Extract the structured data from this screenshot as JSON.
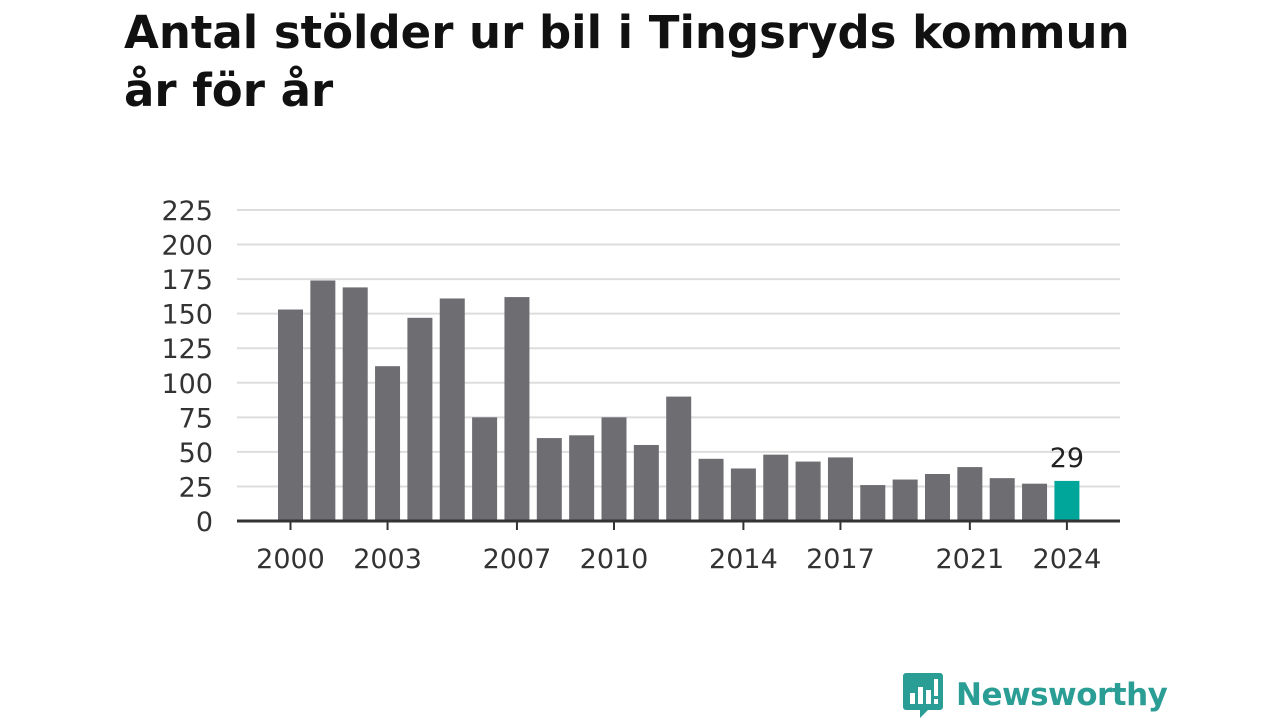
{
  "header": {
    "title_line1": "Antal stölder ur bil i Tingsryds kommun",
    "title_line2": "år för år"
  },
  "brand": {
    "name": "Newsworthy",
    "icon": "newsworthy-logo-icon"
  },
  "colors": {
    "bar": "#6e6d72",
    "highlight": "#00a69a",
    "grid": "#dddddd",
    "axis": "#333333",
    "brand": "#2a9d94"
  },
  "chart_data": {
    "type": "bar",
    "categories": [
      "2000",
      "2001",
      "2002",
      "2003",
      "2004",
      "2005",
      "2006",
      "2007",
      "2008",
      "2009",
      "2010",
      "2011",
      "2012",
      "2013",
      "2014",
      "2015",
      "2016",
      "2017",
      "2018",
      "2019",
      "2020",
      "2021",
      "2022",
      "2023",
      "2024"
    ],
    "values": [
      153,
      174,
      169,
      112,
      147,
      161,
      75,
      162,
      60,
      62,
      75,
      55,
      90,
      45,
      38,
      48,
      43,
      46,
      26,
      30,
      34,
      39,
      31,
      27,
      29
    ],
    "x_tick_labels": [
      "2000",
      "2003",
      "2007",
      "2010",
      "2014",
      "2017",
      "2021",
      "2024"
    ],
    "y_ticks": [
      0,
      25,
      50,
      75,
      100,
      125,
      150,
      175,
      200,
      225
    ],
    "ylim": [
      0,
      225
    ],
    "highlight": {
      "category": "2024",
      "label": "29"
    },
    "grid": true,
    "legend": "none",
    "title": "Antal stölder ur bil i Tingsryds kommun år för år",
    "xlabel": "",
    "ylabel": ""
  }
}
